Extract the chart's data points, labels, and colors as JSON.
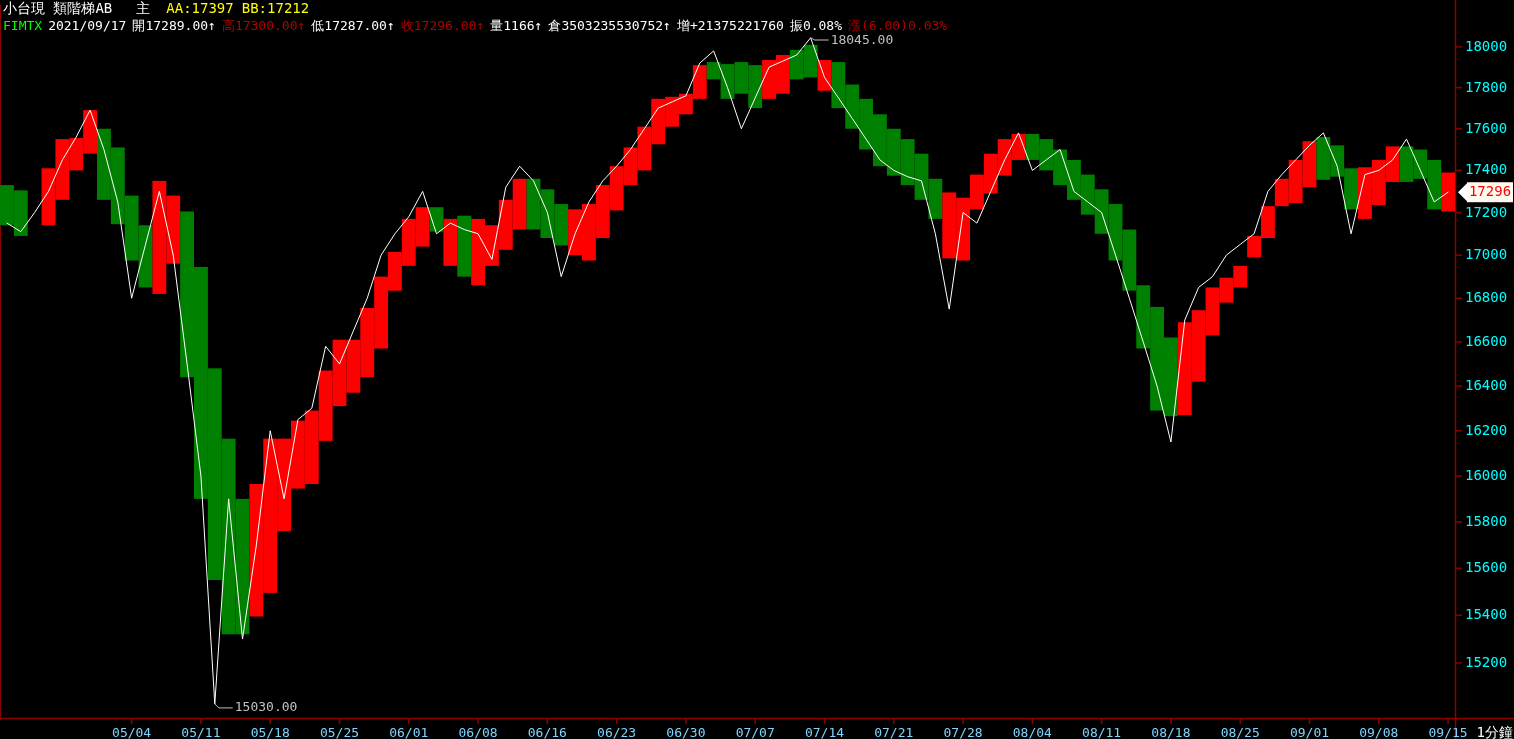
{
  "chart_data": {
    "type": "bar",
    "title": "小台現 類階梯AB",
    "log": true,
    "ylim": [
      14972,
      18208
    ],
    "categories": [
      null,
      null,
      null,
      null,
      null,
      null,
      null,
      null,
      null,
      "05/04",
      null,
      null,
      null,
      null,
      "05/11",
      null,
      null,
      null,
      null,
      "05/18",
      null,
      null,
      null,
      null,
      "05/25",
      null,
      null,
      null,
      null,
      "06/01",
      null,
      null,
      null,
      null,
      "06/08",
      null,
      null,
      null,
      null,
      "06/16",
      null,
      null,
      null,
      null,
      "06/23",
      null,
      null,
      null,
      null,
      "06/30",
      null,
      null,
      null,
      null,
      "07/07",
      null,
      null,
      null,
      null,
      "07/14",
      null,
      null,
      null,
      null,
      "07/21",
      null,
      null,
      null,
      null,
      "07/28",
      null,
      null,
      null,
      null,
      "08/04",
      null,
      null,
      null,
      null,
      "08/11",
      null,
      null,
      null,
      null,
      "08/18",
      null,
      null,
      null,
      null,
      "08/25",
      null,
      null,
      null,
      null,
      "09/01",
      null,
      null,
      null,
      null,
      "09/08",
      null,
      null,
      null,
      null,
      "09/15"
    ],
    "yticks": [
      15200,
      15400,
      15600,
      15800,
      16000,
      16200,
      16400,
      16600,
      16800,
      17000,
      17200,
      17400,
      17600,
      17800,
      18000
    ],
    "series": [
      {
        "base": [
          17140,
          17090,
          null,
          17140,
          17260,
          17400,
          17480,
          17260,
          17145,
          16975,
          16850,
          16820,
          16960,
          16440,
          15900,
          15550,
          15320,
          15320,
          15395,
          15495,
          15760,
          15945,
          15965,
          16155,
          16310,
          16370,
          16440,
          16570,
          16835,
          16950,
          17040,
          17110,
          16950,
          16900,
          16860,
          16950,
          17025,
          17120,
          17120,
          17080,
          17045,
          17000,
          16975,
          17080,
          17210,
          17330,
          17400,
          17525,
          17610,
          17670,
          17745,
          17840,
          17745,
          17770,
          17700,
          17745,
          17770,
          17840,
          17850,
          17785,
          17700,
          17600,
          17500,
          17420,
          17375,
          17330,
          17260,
          17170,
          16985,
          16975,
          17215,
          17290,
          17375,
          17450,
          17450,
          17400,
          17330,
          17260,
          17190,
          17100,
          16975,
          16835,
          16570,
          16290,
          16265,
          16270,
          16420,
          16630,
          16780,
          16850,
          16990,
          17080,
          17230,
          17245,
          17320,
          17355,
          17370,
          17215,
          17170,
          17235,
          17345,
          17345,
          17360,
          17215,
          17205
        ],
        "values": [
          190,
          215,
          null,
          270,
          290,
          155,
          210,
          340,
          365,
          305,
          290,
          530,
          320,
          765,
          1045,
          930,
          845,
          580,
          570,
          670,
          405,
          300,
          325,
          315,
          300,
          240,
          315,
          330,
          180,
          220,
          185,
          115,
          220,
          285,
          310,
          190,
          235,
          240,
          240,
          230,
          195,
          215,
          265,
          250,
          210,
          180,
          210,
          220,
          145,
          100,
          165,
          85,
          170,
          155,
          210,
          190,
          190,
          145,
          160,
          150,
          225,
          215,
          245,
          250,
          225,
          220,
          220,
          190,
          310,
          295,
          165,
          190,
          175,
          125,
          125,
          150,
          170,
          190,
          190,
          210,
          265,
          285,
          290,
          470,
          355,
          420,
          325,
          220,
          115,
          100,
          100,
          150,
          130,
          205,
          220,
          205,
          150,
          195,
          245,
          215,
          170,
          170,
          140,
          235,
          185
        ],
        "colors": [
          "#008000",
          "#008000",
          null,
          "#ff0000",
          "#ff0000",
          "#ff0000",
          "#ff0000",
          "#008000",
          "#008000",
          "#008000",
          "#008000",
          "#ff0000",
          "#ff0000",
          "#008000",
          "#008000",
          "#008000",
          "#008000",
          "#008000",
          "#ff0000",
          "#ff0000",
          "#ff0000",
          "#ff0000",
          "#ff0000",
          "#ff0000",
          "#ff0000",
          "#ff0000",
          "#ff0000",
          "#ff0000",
          "#ff0000",
          "#ff0000",
          "#ff0000",
          "#008000",
          "#ff0000",
          "#008000",
          "#ff0000",
          "#ff0000",
          "#ff0000",
          "#ff0000",
          "#008000",
          "#008000",
          "#008000",
          "#ff0000",
          "#ff0000",
          "#ff0000",
          "#ff0000",
          "#ff0000",
          "#ff0000",
          "#ff0000",
          "#ff0000",
          "#ff0000",
          "#ff0000",
          "#008000",
          "#008000",
          "#008000",
          "#008000",
          "#ff0000",
          "#ff0000",
          "#008000",
          "#008000",
          "#ff0000",
          "#008000",
          "#008000",
          "#008000",
          "#008000",
          "#008000",
          "#008000",
          "#008000",
          "#008000",
          "#ff0000",
          "#ff0000",
          "#ff0000",
          "#ff0000",
          "#ff0000",
          "#ff0000",
          "#008000",
          "#008000",
          "#008000",
          "#008000",
          "#008000",
          "#008000",
          "#008000",
          "#008000",
          "#008000",
          "#008000",
          "#008000",
          "#ff0000",
          "#ff0000",
          "#ff0000",
          "#ff0000",
          "#ff0000",
          "#ff0000",
          "#ff0000",
          "#ff0000",
          "#ff0000",
          "#ff0000",
          "#008000",
          "#008000",
          "#008000",
          "#ff0000",
          "#ff0000",
          "#ff0000",
          "#008000",
          "#008000",
          "#008000",
          "#ff0000"
        ]
      },
      {
        "type": "line",
        "color": "#ffffff",
        "values": [
          17150,
          17110,
          17200,
          17300,
          17450,
          17560,
          17690,
          17500,
          17250,
          16800,
          17050,
          17300,
          17000,
          16500,
          16000,
          15030,
          15900,
          15300,
          15700,
          16200,
          15900,
          16250,
          16300,
          16580,
          16500,
          16650,
          16800,
          17000,
          17100,
          17180,
          17300,
          17100,
          17150,
          17120,
          17100,
          16980,
          17320,
          17420,
          17350,
          17200,
          16900,
          17100,
          17250,
          17350,
          17420,
          17500,
          17600,
          17700,
          17730,
          17760,
          17920,
          17980,
          17800,
          17600,
          17750,
          17900,
          17930,
          17960,
          18045,
          17850,
          17750,
          17650,
          17550,
          17450,
          17400,
          17370,
          17350,
          17100,
          16750,
          17200,
          17150,
          17300,
          17450,
          17580,
          17400,
          17450,
          17500,
          17300,
          17250,
          17200,
          17000,
          16800,
          16600,
          16400,
          16150,
          16700,
          16850,
          16900,
          17000,
          17050,
          17100,
          17300,
          17380,
          17450,
          17520,
          17580,
          17420,
          17100,
          17380,
          17400,
          17450,
          17550,
          17400,
          17250,
          17296
        ]
      }
    ],
    "annotations": [
      "主",
      "AA:17397",
      "BB:17212",
      "FIMTX",
      "2021/09/17",
      "開17289.00↑",
      "高17300.00↑",
      "低17287.00↑",
      "收17296.00↑",
      "量1166↑",
      "倉3503235530752↑",
      "增+21375221760",
      "振0.08%",
      "漲(6.00)0.03%",
      "1分鐘",
      "18045.00",
      "15030.00",
      "17296"
    ]
  }
}
